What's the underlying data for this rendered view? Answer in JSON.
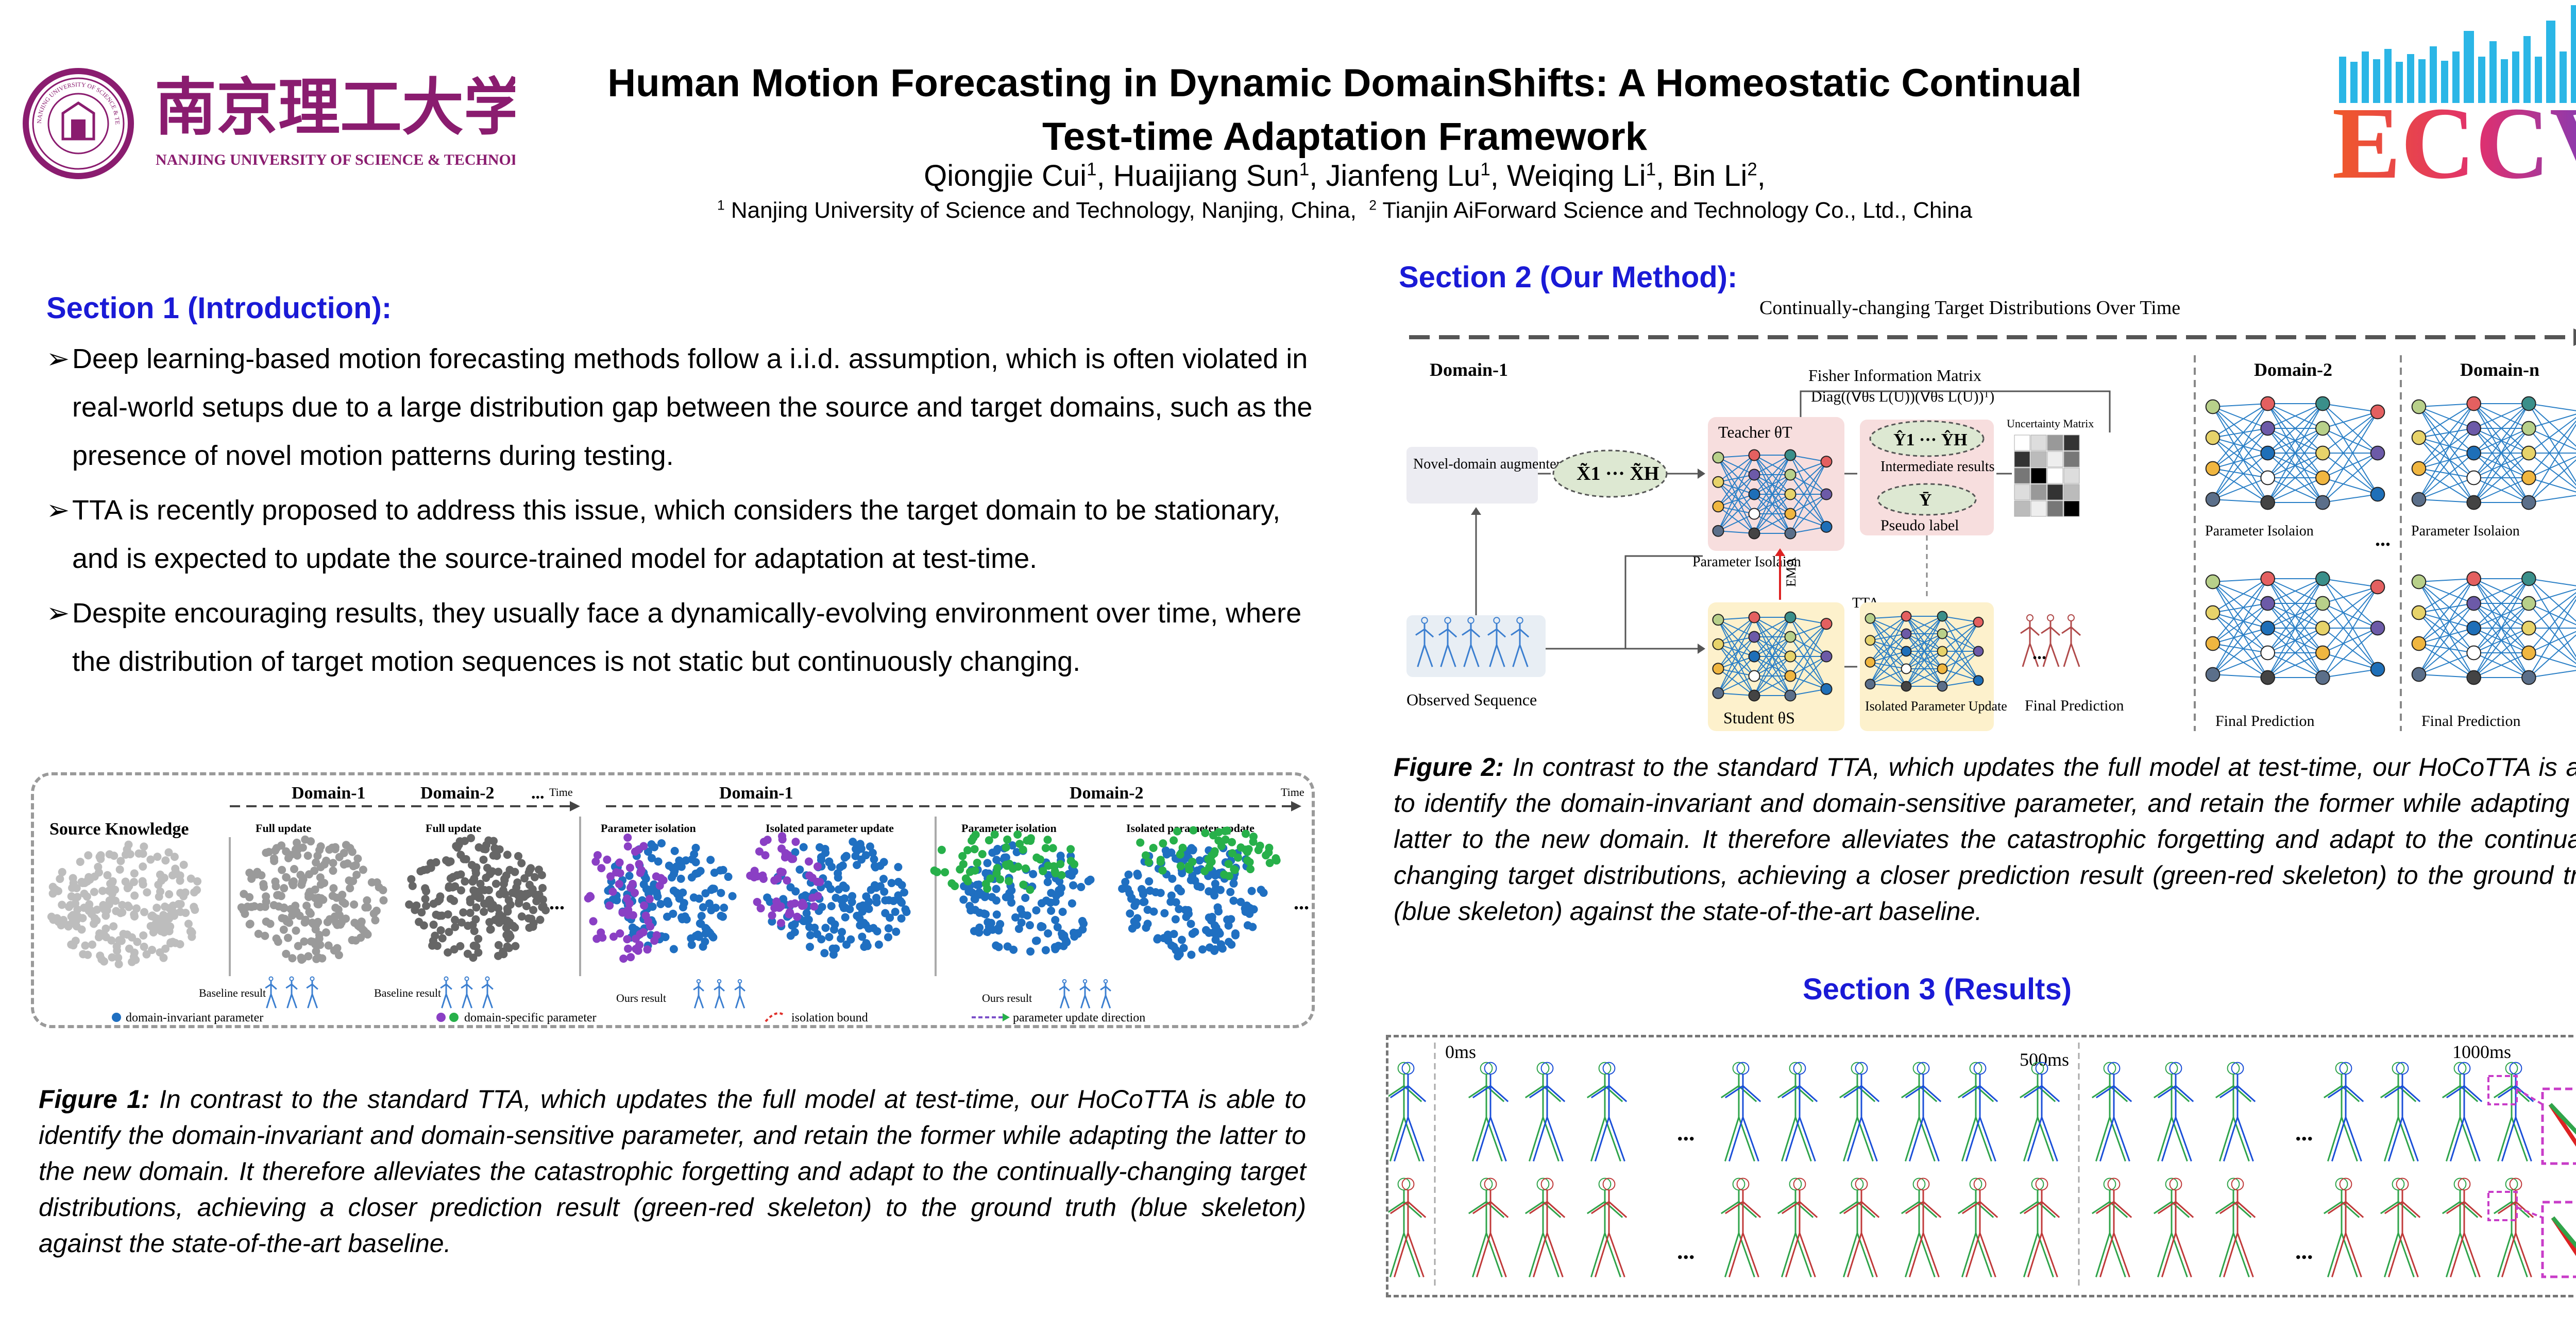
{
  "header": {
    "university_cn": "南京理工大学",
    "university_en": "NANJING UNIVERSITY OF SCIENCE & TECHNOLOGY",
    "seal_text": "NANJING UNIVERSITY OF SCIENCE & TECHNOLOGY",
    "title_line1": "Human Motion Forecasting in Dynamic DomainShifts: A Homeostatic Continual",
    "title_line2": "Test-time Adaptation Framework",
    "authors": [
      {
        "name": "Qiongjie Cui",
        "sup": "1",
        "sep": ", "
      },
      {
        "name": "Huaijiang Sun",
        "sup": "1",
        "sep": ", "
      },
      {
        "name": "Jianfeng Lu",
        "sup": "1",
        "sep": ", "
      },
      {
        "name": "Weiqing Li",
        "sup": "1",
        "sep": ", "
      },
      {
        "name": "Bin Li",
        "sup": "2",
        "sep": ","
      }
    ],
    "affil1_sup": "1",
    "affil1": " Nanjing University of Science and Technology, Nanjing, China,",
    "affil2_sup": "2",
    "affil2": " Tianjin AiForward Science and Technology Co., Ltd., China",
    "conference_logo": "ECCV"
  },
  "section1": {
    "heading": "Section 1 (Introduction):",
    "bullets": [
      "Deep learning-based motion forecasting methods follow a i.i.d. assumption, which is often violated in real-world setups due to a large distribution gap between the source and target domains, such as the presence of novel motion patterns during testing.",
      "TTA is recently proposed to address this issue, which considers the target domain to be stationary, and is expected to update the source-trained model for adaptation at test-time.",
      "Despite encouraging results, they usually face a dynamically-evolving environment over time, where the distribution of target motion sequences is not static but continuously changing."
    ],
    "bullet_marker": "➢"
  },
  "figure1": {
    "labels": {
      "source_knowledge": "Source Knowledge",
      "domain1": "Domain-1",
      "domain2": "Domain-2",
      "time": "Time",
      "full_update": "Full update",
      "param_isolation": "Parameter isolation",
      "isolated_update": "Isolated parameter update",
      "baseline_result": "Baseline result",
      "ours_result": "Ours result",
      "ellipsis": "..."
    },
    "legend": [
      {
        "label": "domain-invariant parameter",
        "color": "#1f6fc1"
      },
      {
        "label": "domain-specific parameter",
        "color": "#8a3fc4"
      },
      {
        "label": "isolation bound",
        "color": "#e0302b"
      },
      {
        "label": "parameter update direction",
        "color": "#7b4fc9"
      }
    ],
    "caption_label": "Figure 1:",
    "caption": " In contrast to the standard TTA, which updates the full model at test-time, our HoCoTTA is able to identify the domain-invariant and domain-sensitive parameter, and retain the former while adapting the latter to the new domain. It therefore alleviates the catastrophic forgetting and adapt to the continually-changing target distributions, achieving a closer prediction result (green-red skeleton) to the ground truth (blue skeleton) against the state-of-the-art baseline."
  },
  "section2": {
    "heading": "Section 2 (Our Method):"
  },
  "figure2": {
    "labels": {
      "timeline": "Continually-changing Target Distributions Over Time",
      "domain1": "Domain-1",
      "domain2": "Domain-2",
      "domainn": "Domain-n",
      "fisher": "Fisher Information Matrix",
      "fisher_formula": "Diag((∇θs L(U))(∇θs L(U))ᵀ)",
      "teacher": "Teacher θT",
      "student": "Student θS",
      "augmenter": "Novel-domain augmenter Aφ",
      "input": "X̃1 ··· X̃H",
      "intermediate_eq": "Ŷ1 ··· ŶH",
      "intermediate": "Intermediate results",
      "pseudo_eq": "Ȳ",
      "pseudo": "Pseudo label",
      "uncertainty": "Uncertainty Matrix",
      "param_isolation": "Parameter Isolaion",
      "ema": "EMA",
      "tta": "TTA",
      "observed": "Observed Sequence",
      "isolated_update": "Isolated Parameter Update",
      "final_prediction": "Final Prediction",
      "ellipsis": "..."
    },
    "colors": {
      "teacher_bg": "#f7dede",
      "student_bg": "#fdf1cc",
      "edge": "#2a7fc6"
    },
    "caption_label": "Figure 2:",
    "caption": " In contrast to the standard TTA, which updates the full model at test-time, our HoCoTTA is able to identify the domain-invariant and domain-sensitive parameter, and retain the former while adapting the latter to the new domain. It therefore alleviates the catastrophic forgetting and adapt to the continually-changing target distributions, achieving a closer prediction result (green-red skeleton) to the ground truth (blue skeleton) against the state-of-the-art baseline."
  },
  "section3": {
    "heading": "Section 3 (Results)",
    "time_labels": [
      "0ms",
      "500ms",
      "1000ms"
    ],
    "ellipsis": "..."
  }
}
